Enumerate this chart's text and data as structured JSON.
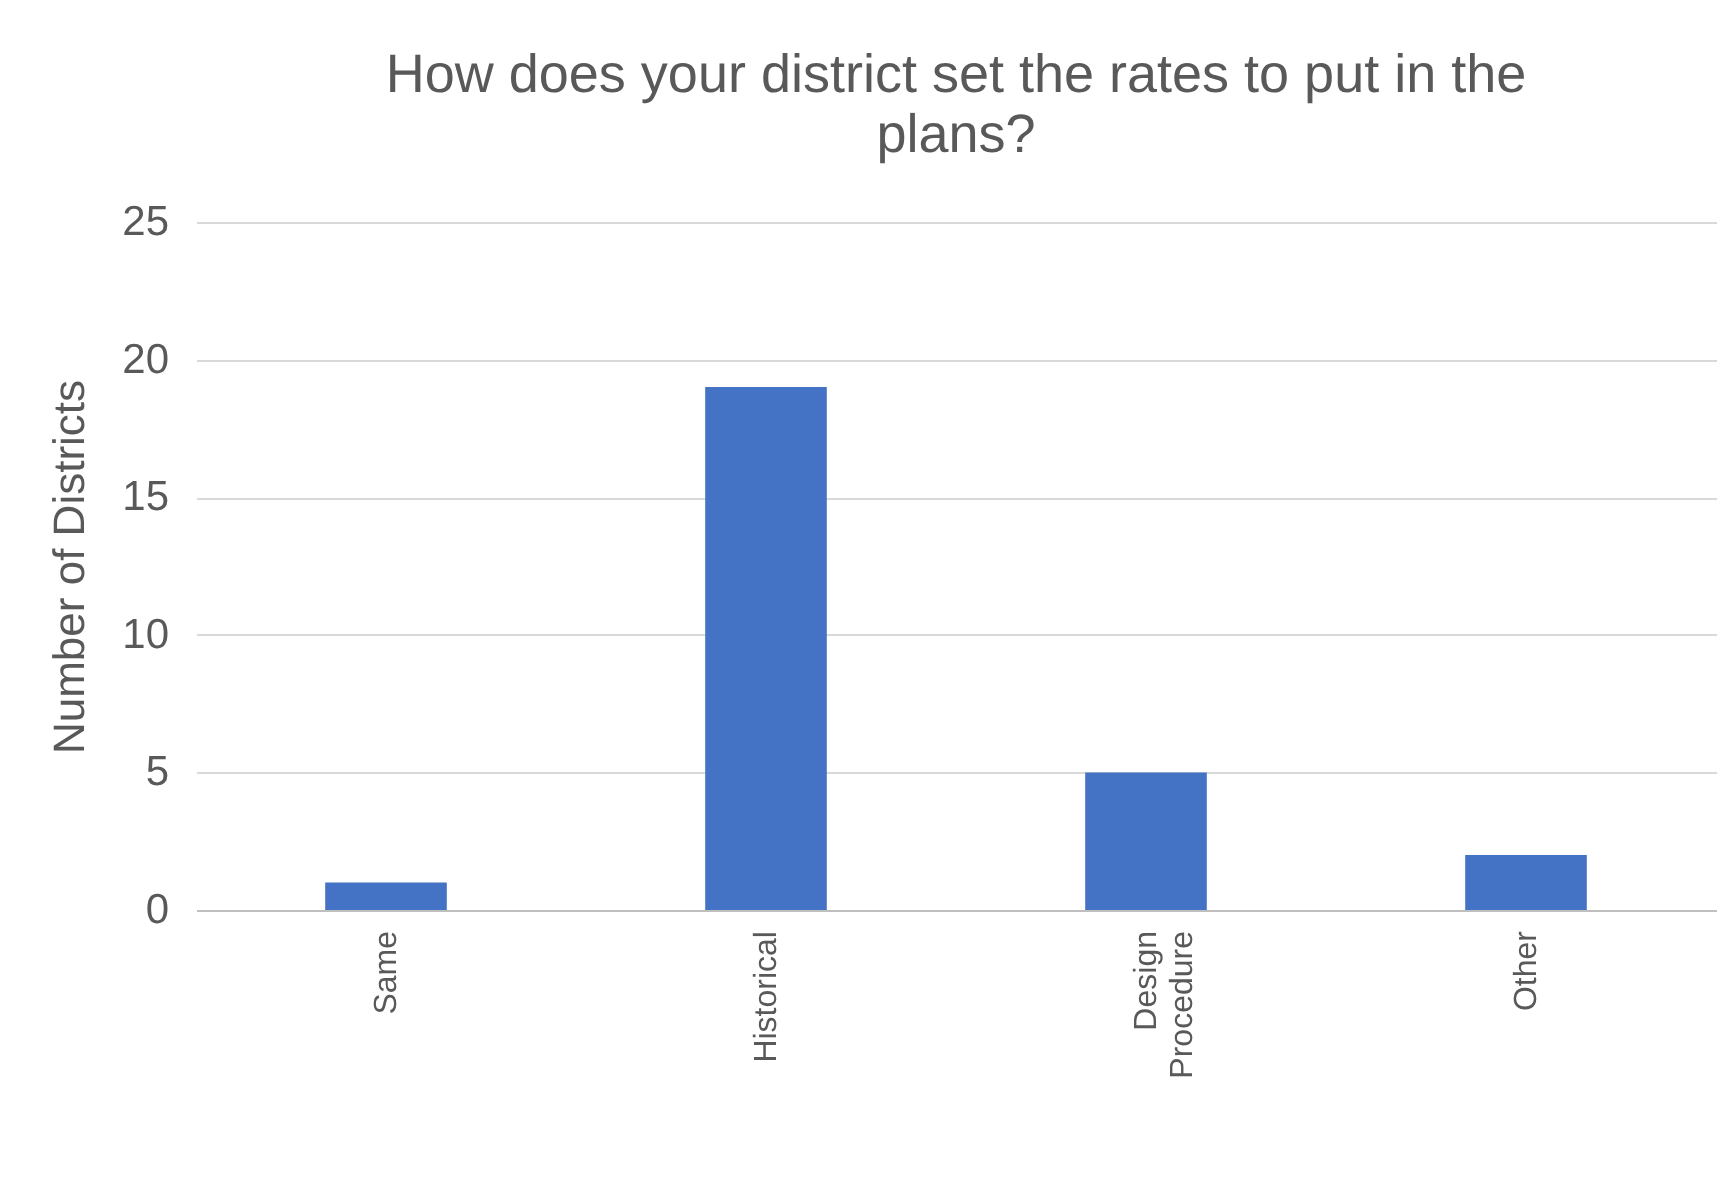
{
  "chart_data": {
    "type": "bar",
    "title": "How does your district set the rates to put in the plans?",
    "ylabel": "Number of Districts",
    "categories": [
      "Same",
      "Historical",
      "Design Procedure",
      "Other"
    ],
    "values": [
      1,
      19,
      5,
      2
    ],
    "color": "#4472c4",
    "ylim": [
      0,
      25
    ],
    "yticks": [
      0,
      5,
      10,
      15,
      20,
      25
    ],
    "grid": "y"
  }
}
